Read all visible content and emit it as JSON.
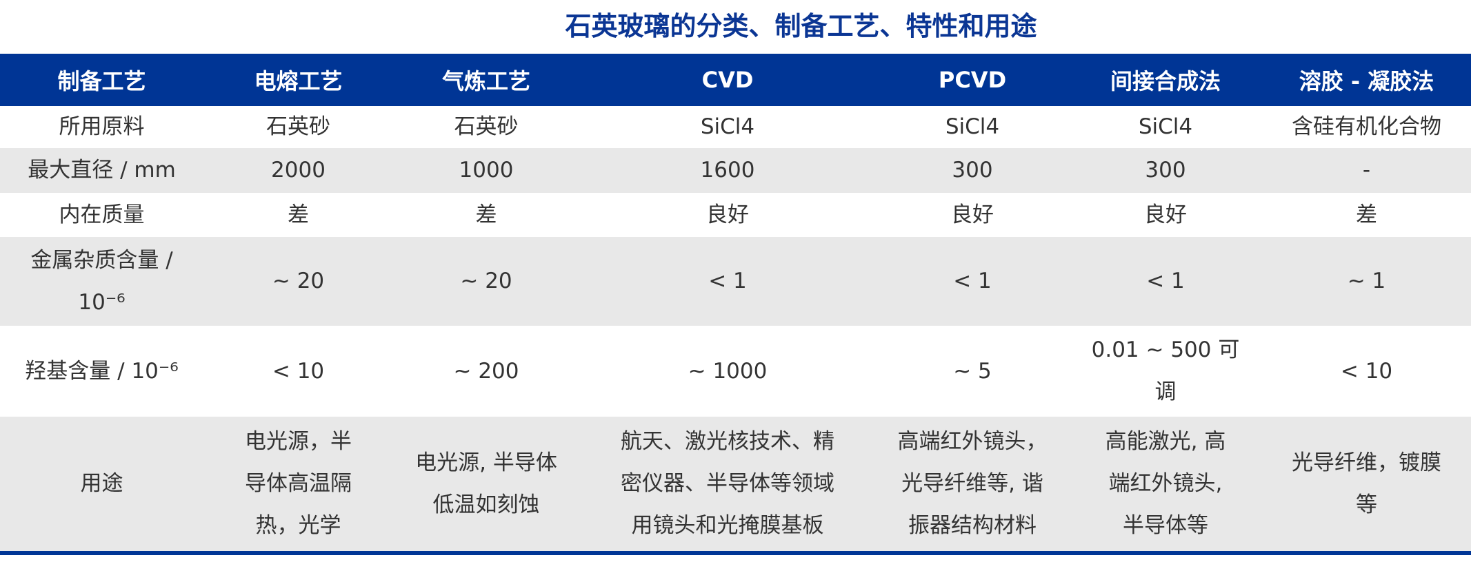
{
  "title": "石英玻璃的分类、制备工艺、特性和用途",
  "colors": {
    "header_bg": "#003595",
    "title": "#0b3694",
    "row_alt": "#e8e8e8"
  },
  "headers": [
    "制备工艺",
    "电熔工艺",
    "气炼工艺",
    "CVD",
    "PCVD",
    "间接合成法",
    "溶胶 - 凝胶法"
  ],
  "rows": [
    {
      "cells": [
        "所用原料",
        "石英砂",
        "石英砂",
        "SiCl4",
        "SiCl4",
        "SiCl4",
        "含硅有机化合物"
      ]
    },
    {
      "cells": [
        "最大直径 / mm",
        "2000",
        "1000",
        "1600",
        "300",
        "300",
        "-"
      ]
    },
    {
      "cells": [
        "内在质量",
        "差",
        "差",
        "良好",
        "良好",
        "良好",
        "差"
      ]
    },
    {
      "cells": [
        "金属杂质含量 /\n10⁻⁶",
        "~ 20",
        "~ 20",
        "< 1",
        "< 1",
        "< 1",
        "~ 1"
      ]
    },
    {
      "cells": [
        "羟基含量 / 10⁻⁶",
        "< 10",
        "~ 200",
        "~ 1000",
        "~ 5",
        "0.01 ~ 500 可\n调",
        "< 10"
      ]
    },
    {
      "cells": [
        "用途",
        "电光源，半\n导体高温隔\n热，光学",
        "电光源, 半导体\n低温如刻蚀",
        "航天、激光核技术、精\n密仪器、半导体等领域\n用镜头和光掩膜基板",
        "高端红外镜头，\n光导纤维等, 谐\n振器结构材料",
        "高能激光, 高\n端红外镜头,\n半导体等",
        "光导纤维，镀膜\n等"
      ]
    }
  ]
}
